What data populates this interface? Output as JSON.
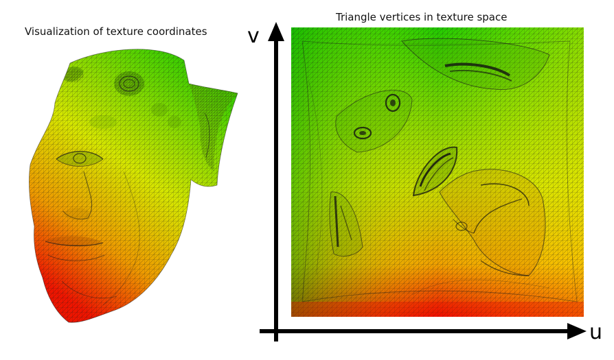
{
  "left_panel": {
    "caption": "Visualization of texture coordinates"
  },
  "right_panel": {
    "caption": "Triangle vertices in texture space",
    "axis_u_label": "u",
    "axis_v_label": "v"
  },
  "colors": {
    "gradient_top": "#22cc00",
    "gradient_mid": "#eeee00",
    "gradient_bottom": "#ee1100",
    "mesh_line": "#1a1a1a",
    "axis": "#000000"
  }
}
